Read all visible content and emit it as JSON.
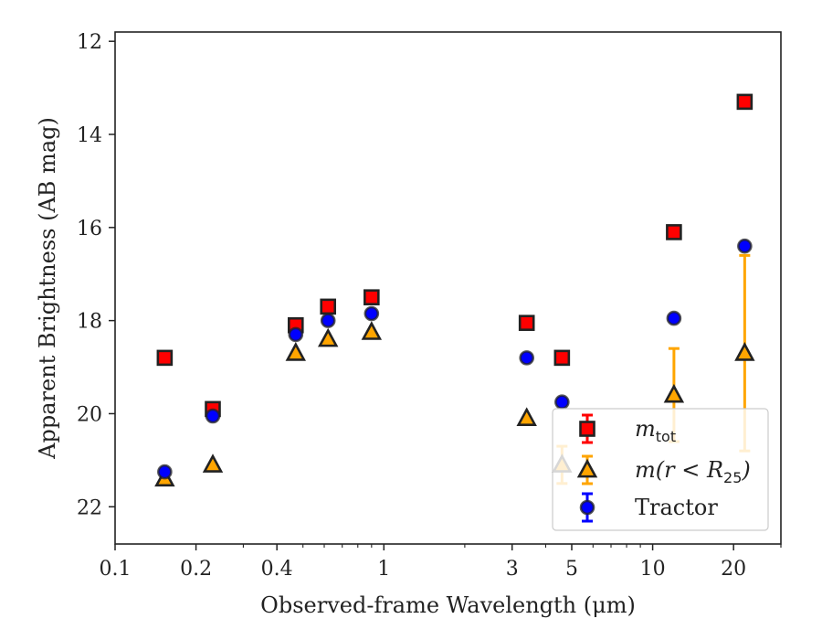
{
  "chart_data": {
    "type": "scatter",
    "xlabel": "Observed-frame Wavelength (μm)",
    "ylabel": "Apparent Brightness (AB mag)",
    "xscale": "log",
    "xlim": [
      0.1,
      30
    ],
    "ylim": [
      22.8,
      11.8
    ],
    "y_inverted": true,
    "grid": false,
    "legend_position": "lower-right",
    "xticks": [
      {
        "value": 0.1,
        "label": "0.1"
      },
      {
        "value": 0.2,
        "label": "0.2"
      },
      {
        "value": 0.4,
        "label": "0.4"
      },
      {
        "value": 1,
        "label": "1"
      },
      {
        "value": 3,
        "label": "3"
      },
      {
        "value": 5,
        "label": "5"
      },
      {
        "value": 10,
        "label": "10"
      },
      {
        "value": 20,
        "label": "20"
      }
    ],
    "yticks": [
      {
        "value": 12,
        "label": "12"
      },
      {
        "value": 14,
        "label": "14"
      },
      {
        "value": 16,
        "label": "16"
      },
      {
        "value": 18,
        "label": "18"
      },
      {
        "value": 20,
        "label": "20"
      },
      {
        "value": 22,
        "label": "22"
      }
    ],
    "series": [
      {
        "id": "mtot",
        "legend_base": "m",
        "legend_sub": "tot",
        "legend_suffix": "",
        "marker": "square",
        "color": "#ff0000",
        "edge_color": "#222222",
        "error_color": "#ff0000",
        "points": [
          {
            "x": 0.153,
            "y": 18.8
          },
          {
            "x": 0.231,
            "y": 19.9
          },
          {
            "x": 0.47,
            "y": 18.1
          },
          {
            "x": 0.62,
            "y": 17.7
          },
          {
            "x": 0.9,
            "y": 17.5
          },
          {
            "x": 3.4,
            "y": 18.05
          },
          {
            "x": 4.6,
            "y": 18.8
          },
          {
            "x": 12.0,
            "y": 16.1
          },
          {
            "x": 22.0,
            "y": 13.3
          }
        ]
      },
      {
        "id": "mr25",
        "legend_base": "m(r < R",
        "legend_sub": "25",
        "legend_suffix": ")",
        "marker": "triangle",
        "color": "#ffa500",
        "edge_color": "#222222",
        "error_color": "#ffa500",
        "points": [
          {
            "x": 0.153,
            "y": 21.4
          },
          {
            "x": 0.231,
            "y": 21.1
          },
          {
            "x": 0.47,
            "y": 18.7
          },
          {
            "x": 0.62,
            "y": 18.4
          },
          {
            "x": 0.9,
            "y": 18.25
          },
          {
            "x": 3.4,
            "y": 20.1
          },
          {
            "x": 4.6,
            "y": 21.1,
            "err": 0.4
          },
          {
            "x": 12.0,
            "y": 19.6,
            "err": 1.0
          },
          {
            "x": 22.0,
            "y": 18.7,
            "err": 2.1
          }
        ]
      },
      {
        "id": "tractor",
        "legend_base": "Tractor",
        "legend_sub": "",
        "legend_suffix": "",
        "marker": "circle",
        "color": "#0000ff",
        "edge_color": "#222222",
        "error_color": "#0000ff",
        "points": [
          {
            "x": 0.153,
            "y": 21.25
          },
          {
            "x": 0.231,
            "y": 20.05
          },
          {
            "x": 0.47,
            "y": 18.3
          },
          {
            "x": 0.62,
            "y": 18.0
          },
          {
            "x": 0.9,
            "y": 17.85
          },
          {
            "x": 3.4,
            "y": 18.8
          },
          {
            "x": 4.6,
            "y": 19.75
          },
          {
            "x": 12.0,
            "y": 17.95
          },
          {
            "x": 22.0,
            "y": 16.4
          }
        ]
      }
    ]
  }
}
